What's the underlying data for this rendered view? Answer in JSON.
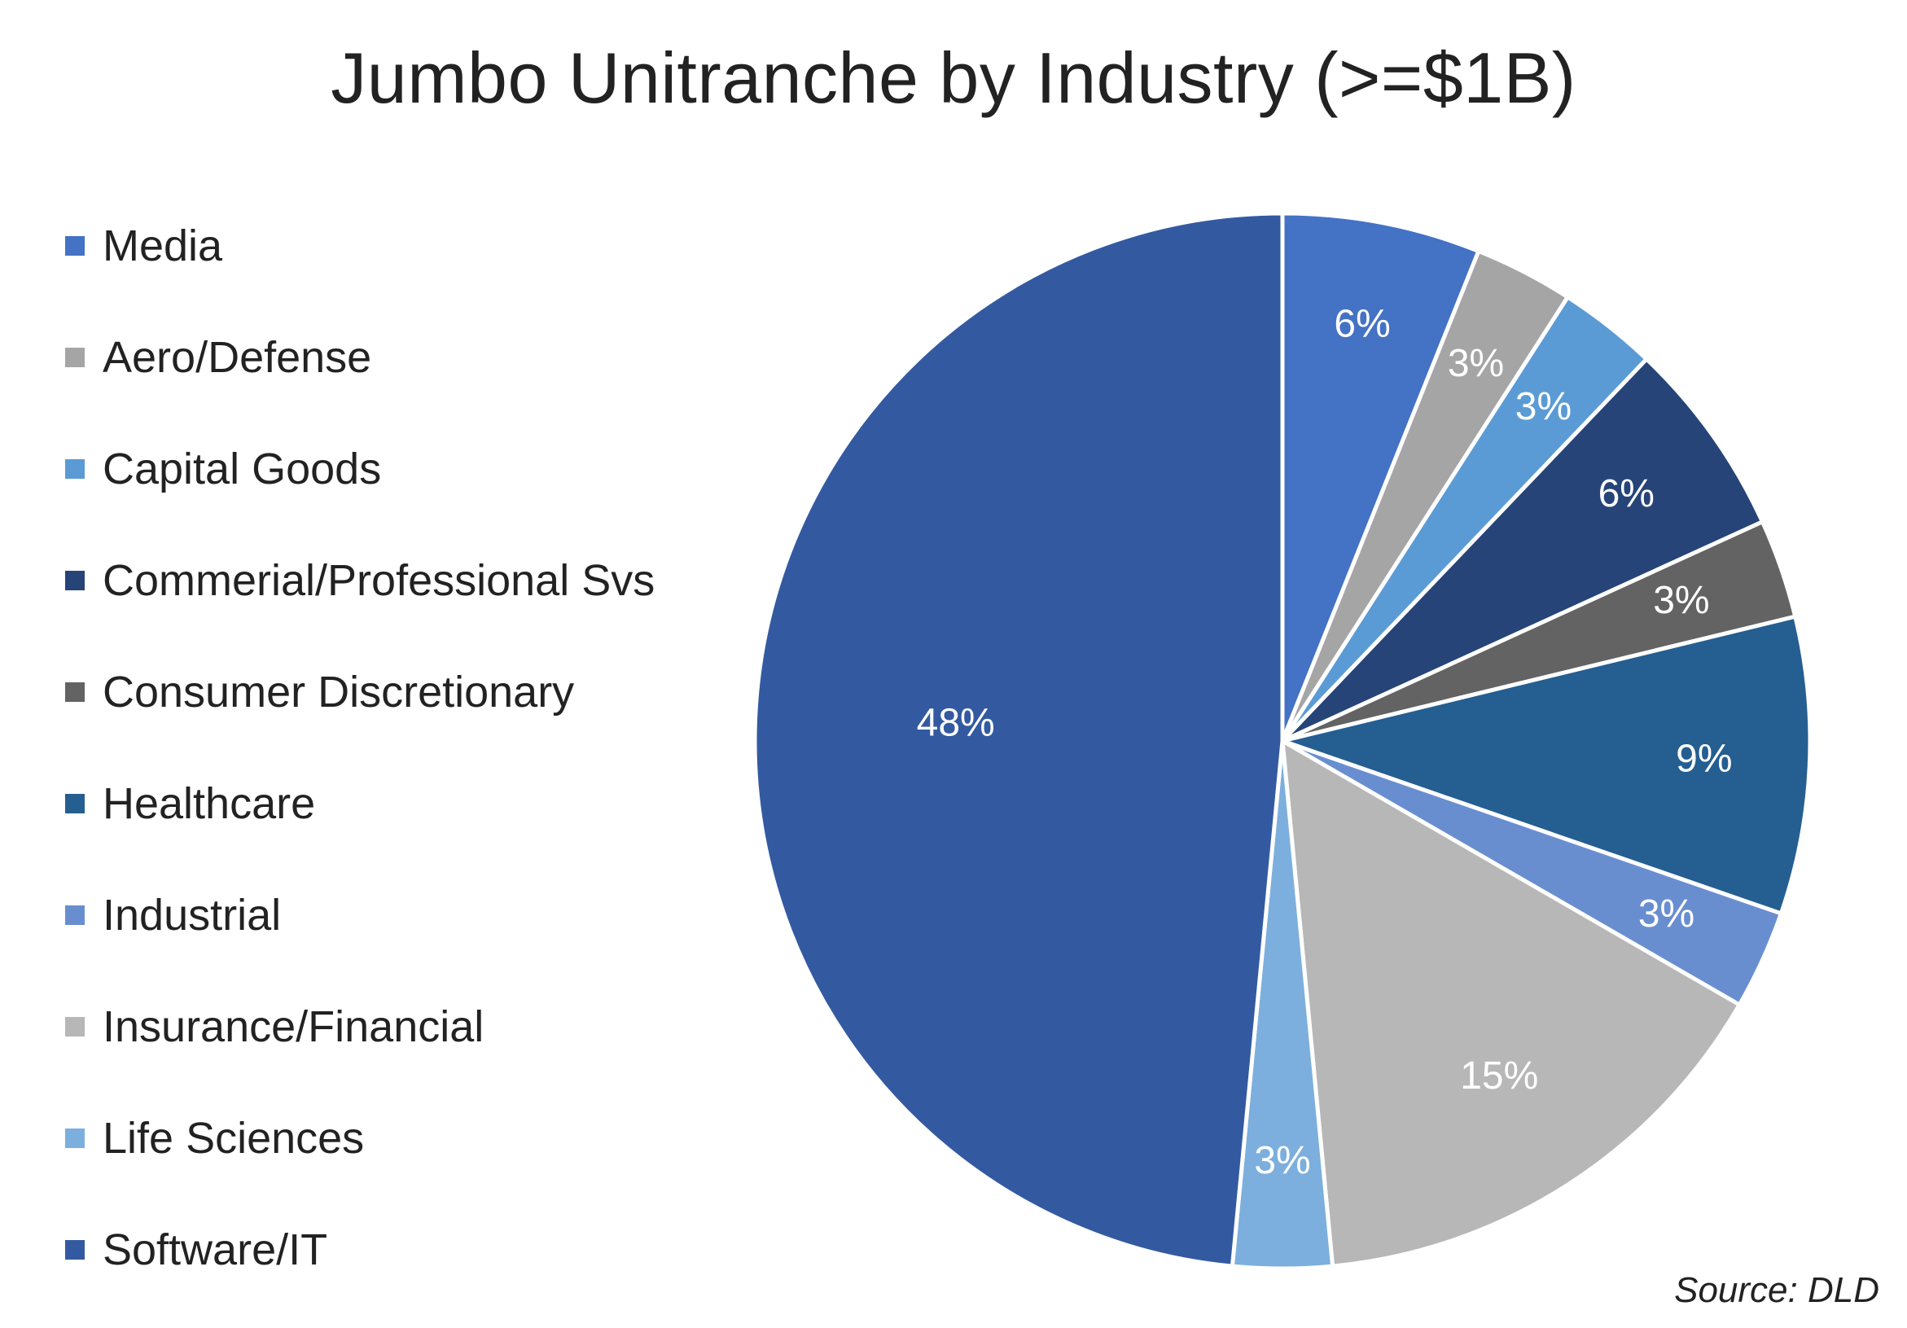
{
  "chart_data": {
    "type": "pie",
    "title": "Jumbo Unitranche by Industry (>=$1B)",
    "source": "Source: DLD",
    "legend_position": "left",
    "slices": [
      {
        "label": "Media",
        "value": 6,
        "value_label": "6%",
        "color": "#4472c4"
      },
      {
        "label": "Aero/Defense",
        "value": 3,
        "value_label": "3%",
        "color": "#a5a5a5"
      },
      {
        "label": "Capital Goods",
        "value": 3,
        "value_label": "3%",
        "color": "#5b9bd5"
      },
      {
        "label": "Commerial/Professional Svs",
        "value": 6,
        "value_label": "6%",
        "color": "#264478"
      },
      {
        "label": "Consumer Discretionary",
        "value": 3,
        "value_label": "3%",
        "color": "#636363"
      },
      {
        "label": "Healthcare",
        "value": 9,
        "value_label": "9%",
        "color": "#255e91"
      },
      {
        "label": "Industrial",
        "value": 3,
        "value_label": "3%",
        "color": "#698ed0"
      },
      {
        "label": "Insurance/Financial",
        "value": 15,
        "value_label": "15%",
        "color": "#b7b7b7"
      },
      {
        "label": "Life Sciences",
        "value": 3,
        "value_label": "3%",
        "color": "#7cafdd"
      },
      {
        "label": "Software/IT",
        "value": 48,
        "value_label": "48%",
        "color": "#335aa1"
      }
    ]
  }
}
